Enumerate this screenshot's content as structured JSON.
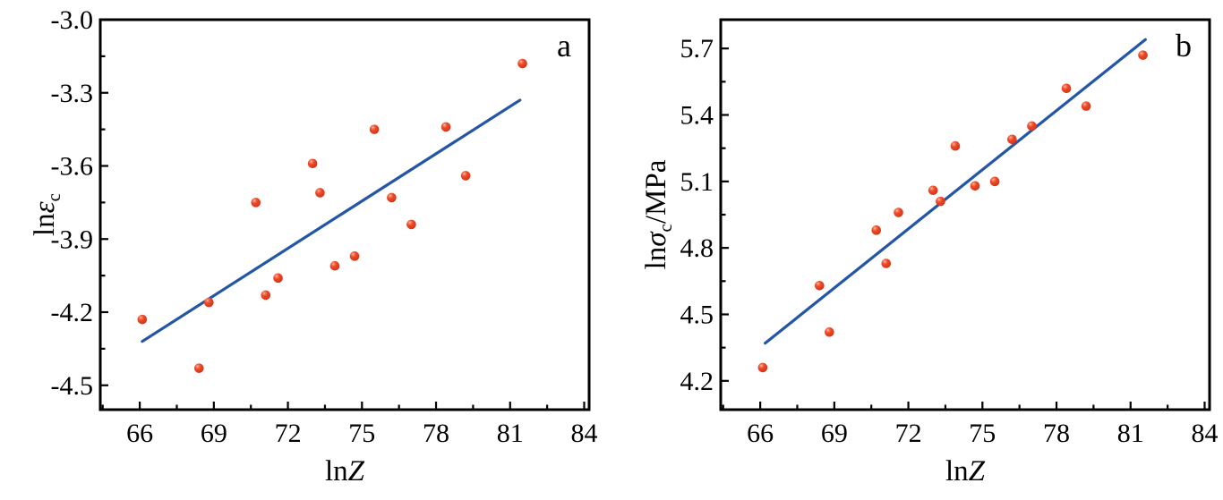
{
  "colors": {
    "background": "#ffffff",
    "axis": "#000000",
    "text": "#000000",
    "fit_line": "#2456a6",
    "point_fill": "#e8452a",
    "point_highlight": "#ffcdbb",
    "point_shadow": "#c22f0f"
  },
  "chart_data": [
    {
      "type": "scatter",
      "panel_label": "a",
      "title": "",
      "xlabel": {
        "plain": "ln",
        "italic": "Z"
      },
      "ylabel": {
        "plain": "ln",
        "symbol": "ε",
        "subscript": "c",
        "suffix": ""
      },
      "xlim": [
        64.4,
        84.2
      ],
      "ylim": [
        -4.6,
        -3.0
      ],
      "grid": false,
      "legend": null,
      "xticks": {
        "values": [
          66,
          69,
          72,
          75,
          78,
          81,
          84
        ],
        "labels": [
          "66",
          "69",
          "72",
          "75",
          "78",
          "81",
          "84"
        ]
      },
      "yticks": {
        "values": [
          -3.0,
          -3.3,
          -3.6,
          -3.9,
          -4.2,
          -4.5
        ],
        "labels": [
          "-3.0",
          "-3.3",
          "-3.6",
          "-3.9",
          "-4.2",
          "-4.5"
        ]
      },
      "xminor": [
        64.5,
        67.5,
        70.5,
        73.5,
        76.5,
        79.5,
        82.5
      ],
      "yminor": [
        -3.15,
        -3.45,
        -3.75,
        -4.05,
        -4.35
      ],
      "points": {
        "x": [
          66.1,
          68.4,
          68.8,
          70.7,
          71.1,
          71.6,
          73.0,
          73.3,
          73.9,
          74.7,
          75.5,
          76.2,
          77.0,
          78.4,
          79.2,
          81.5
        ],
        "y": [
          -4.23,
          -4.43,
          -4.16,
          -3.75,
          -4.13,
          -4.06,
          -3.59,
          -3.71,
          -4.01,
          -3.97,
          -3.45,
          -3.73,
          -3.84,
          -3.44,
          -3.64,
          -3.18
        ]
      },
      "fit_line": {
        "x": [
          66.1,
          81.4
        ],
        "y": [
          -4.32,
          -3.33
        ]
      }
    },
    {
      "type": "scatter",
      "panel_label": "b",
      "title": "",
      "xlabel": {
        "plain": "ln",
        "italic": "Z"
      },
      "ylabel": {
        "plain": "ln",
        "symbol": "σ",
        "subscript": "c",
        "suffix": "/MPa"
      },
      "xlim": [
        64.4,
        84.2
      ],
      "ylim": [
        4.07,
        5.83
      ],
      "grid": false,
      "legend": null,
      "xticks": {
        "values": [
          66,
          69,
          72,
          75,
          78,
          81,
          84
        ],
        "labels": [
          "66",
          "69",
          "72",
          "75",
          "78",
          "81",
          "84"
        ]
      },
      "yticks": {
        "values": [
          5.7,
          5.4,
          5.1,
          4.8,
          4.5,
          4.2
        ],
        "labels": [
          "5.7",
          "5.4",
          "5.1",
          "4.8",
          "4.5",
          "4.2"
        ]
      },
      "xminor": [
        64.5,
        67.5,
        70.5,
        73.5,
        76.5,
        79.5,
        82.5
      ],
      "yminor": [
        5.55,
        5.25,
        4.95,
        4.65,
        4.35
      ],
      "points": {
        "x": [
          66.1,
          68.4,
          68.8,
          70.7,
          71.1,
          71.6,
          73.0,
          73.3,
          73.9,
          74.7,
          75.5,
          76.2,
          77.0,
          78.4,
          79.2,
          81.5
        ],
        "y": [
          4.26,
          4.63,
          4.42,
          4.88,
          4.73,
          4.96,
          5.06,
          5.01,
          5.26,
          5.08,
          5.1,
          5.29,
          5.35,
          5.52,
          5.44,
          5.67
        ]
      },
      "fit_line": {
        "x": [
          66.2,
          81.6
        ],
        "y": [
          4.37,
          5.74
        ]
      }
    }
  ]
}
